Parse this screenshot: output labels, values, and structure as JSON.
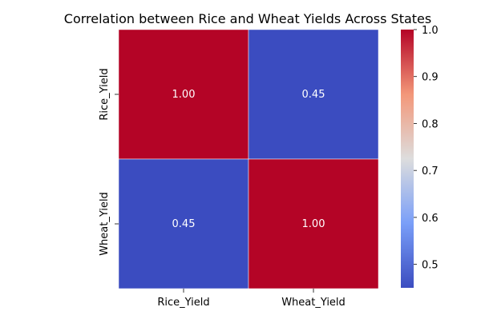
{
  "chart_data": {
    "type": "heatmap",
    "title": "Correlation between Rice and Wheat Yields Across States",
    "x_categories": [
      "Rice_Yield",
      "Wheat_Yield"
    ],
    "y_categories": [
      "Rice_Yield",
      "Wheat_Yield"
    ],
    "values": [
      [
        1.0,
        0.45
      ],
      [
        0.45,
        1.0
      ]
    ],
    "cell_labels": [
      [
        "1.00",
        "0.45"
      ],
      [
        "0.45",
        "1.00"
      ]
    ],
    "colormap": "coolwarm",
    "colorbar": {
      "min": 0.45,
      "max": 1.0,
      "ticks": [
        0.5,
        0.6,
        0.7,
        0.8,
        0.9,
        1.0
      ],
      "tick_labels": [
        "0.5",
        "0.6",
        "0.7",
        "0.8",
        "0.9",
        "1.0"
      ]
    },
    "colors": {
      "low": "#3b4cc0",
      "mid": "#dddddd",
      "high": "#b40426"
    }
  }
}
